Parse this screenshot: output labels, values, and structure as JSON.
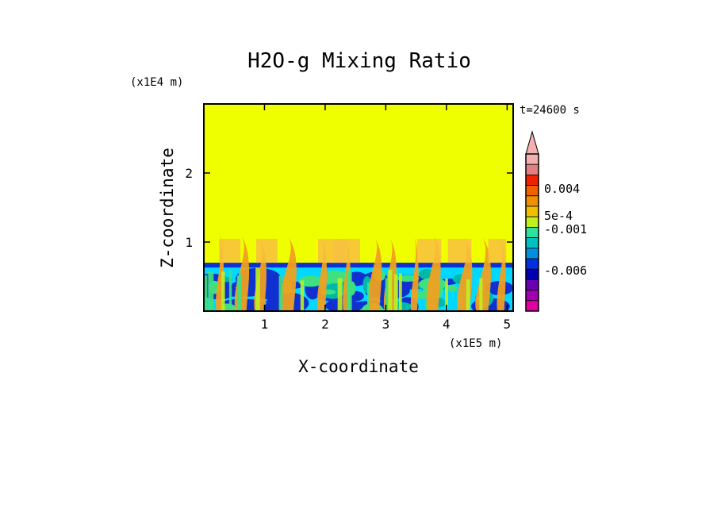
{
  "chart_data": {
    "type": "heatmap",
    "title": "H2O-g Mixing Ratio",
    "xlabel": "X-coordinate",
    "ylabel": "Z-coordinate",
    "x_unit": "(x1E5 m)",
    "y_unit": "(x1E4 m)",
    "time_label": "t=24600 s",
    "xlim": [
      0,
      5.1
    ],
    "ylim": [
      0,
      3
    ],
    "x_ticks": [
      1,
      2,
      3,
      4,
      5
    ],
    "y_ticks": [
      1,
      2
    ],
    "x_tick_labels": [
      "1",
      "2",
      "3",
      "4",
      "5"
    ],
    "y_tick_labels": [
      "1",
      "2"
    ],
    "boundary_layer_top": 0.7,
    "colorbar": {
      "colors": [
        "#e000a0",
        "#a000b0",
        "#6a00b0",
        "#0000b0",
        "#0030e0",
        "#0090e0",
        "#00c0c0",
        "#30e0a0",
        "#c0f020",
        "#f0c000",
        "#f09000",
        "#f06000",
        "#f02000",
        "#e08080",
        "#f4b0b0"
      ],
      "tick_labels": [
        "0.004",
        "5e-4",
        "-0.001",
        "-0.006"
      ],
      "tick_values": [
        0.004,
        0.0005,
        -0.001,
        -0.006
      ],
      "extend": "max"
    },
    "palette": {
      "background": "#f0ff00",
      "deep": "#1030d0",
      "mid": "#00d8ff",
      "teal": "#00b8a8",
      "green": "#40e080",
      "plume": "#f0a020",
      "plume_light": "#f8c040"
    }
  }
}
